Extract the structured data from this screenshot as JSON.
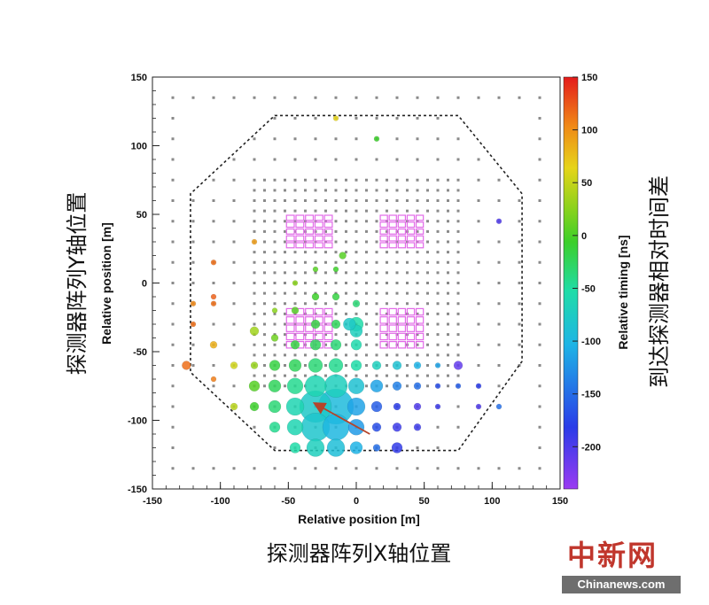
{
  "chart_data": {
    "type": "scatter",
    "xlabel": "Relative position [m]",
    "ylabel": "Relative position [m]",
    "xlabel_cn": "探测器阵列X轴位置",
    "ylabel_cn": "探测器阵列Y轴位置",
    "xlim": [
      -150,
      150
    ],
    "ylim": [
      -150,
      150
    ],
    "x_ticks": [
      -150,
      -100,
      -50,
      0,
      50,
      100,
      150
    ],
    "y_ticks": [
      -150,
      -100,
      -50,
      0,
      50,
      100,
      150
    ],
    "x_tick_labels": [
      "-150",
      "-100",
      "-50",
      "0",
      "50",
      "100",
      "150"
    ],
    "y_tick_labels": [
      "-150",
      "-100",
      "-50",
      "0",
      "50",
      "100",
      "150"
    ],
    "colorbar": {
      "label": "Relative timing [ns]",
      "label_cn": "到达探测器相对时间差",
      "range": [
        -240,
        150
      ],
      "ticks": [
        150,
        100,
        50,
        0,
        -50,
        -100,
        -150,
        -200
      ],
      "tick_labels": [
        "150",
        "100",
        "50",
        "0",
        "-50",
        "-100",
        "-150",
        "-200"
      ]
    },
    "array_boundary_octagon": [
      [
        -60,
        122
      ],
      [
        75,
        122
      ],
      [
        122,
        65
      ],
      [
        122,
        -57
      ],
      [
        75,
        -122
      ],
      [
        -60,
        -122
      ],
      [
        -122,
        -65
      ],
      [
        -122,
        65
      ]
    ],
    "muon_detector_blocks": [
      {
        "x": [
          -52,
          -17
        ],
        "y": [
          25,
          50
        ]
      },
      {
        "x": [
          17,
          50
        ],
        "y": [
          25,
          50
        ]
      },
      {
        "x": [
          -52,
          -17
        ],
        "y": [
          -48,
          -18
        ]
      },
      {
        "x": [
          17,
          50
        ],
        "y": [
          -48,
          -18
        ]
      }
    ],
    "shower_direction_arrow": {
      "from": [
        10,
        -110
      ],
      "to": [
        -30,
        -88
      ]
    },
    "hit_detectors": [
      {
        "x": -125,
        "y": -60,
        "t": 120,
        "size": 5
      },
      {
        "x": -120,
        "y": -15,
        "t": 110,
        "size": 3
      },
      {
        "x": -120,
        "y": -30,
        "t": 120,
        "size": 3
      },
      {
        "x": -105,
        "y": -45,
        "t": 90,
        "size": 4
      },
      {
        "x": -105,
        "y": -15,
        "t": 120,
        "size": 3
      },
      {
        "x": -105,
        "y": -70,
        "t": 115,
        "size": 3
      },
      {
        "x": -105,
        "y": -10,
        "t": 125,
        "size": 3
      },
      {
        "x": -105,
        "y": 15,
        "t": 120,
        "size": 3
      },
      {
        "x": -90,
        "y": -90,
        "t": 50,
        "size": 4
      },
      {
        "x": -90,
        "y": -60,
        "t": 60,
        "size": 4
      },
      {
        "x": -75,
        "y": -35,
        "t": 40,
        "size": 5
      },
      {
        "x": -75,
        "y": -60,
        "t": 35,
        "size": 4
      },
      {
        "x": -75,
        "y": -75,
        "t": 10,
        "size": 6
      },
      {
        "x": -75,
        "y": -90,
        "t": 0,
        "size": 5
      },
      {
        "x": -75,
        "y": 30,
        "t": 100,
        "size": 3
      },
      {
        "x": -60,
        "y": -60,
        "t": -10,
        "size": 6
      },
      {
        "x": -60,
        "y": -75,
        "t": -20,
        "size": 7
      },
      {
        "x": -60,
        "y": -90,
        "t": -30,
        "size": 7
      },
      {
        "x": -60,
        "y": -105,
        "t": -40,
        "size": 6
      },
      {
        "x": -60,
        "y": -40,
        "t": 20,
        "size": 4
      },
      {
        "x": -60,
        "y": -20,
        "t": 30,
        "size": 3
      },
      {
        "x": -45,
        "y": -60,
        "t": -20,
        "size": 7
      },
      {
        "x": -45,
        "y": -75,
        "t": -40,
        "size": 9
      },
      {
        "x": -45,
        "y": -90,
        "t": -60,
        "size": 10
      },
      {
        "x": -45,
        "y": -105,
        "t": -60,
        "size": 9
      },
      {
        "x": -45,
        "y": -120,
        "t": -50,
        "size": 6
      },
      {
        "x": -45,
        "y": -45,
        "t": -10,
        "size": 5
      },
      {
        "x": -45,
        "y": -20,
        "t": 10,
        "size": 4
      },
      {
        "x": -45,
        "y": 0,
        "t": 30,
        "size": 3
      },
      {
        "x": -30,
        "y": -60,
        "t": -30,
        "size": 8
      },
      {
        "x": -30,
        "y": -75,
        "t": -60,
        "size": 12
      },
      {
        "x": -30,
        "y": -90,
        "t": -80,
        "size": 18
      },
      {
        "x": -30,
        "y": -105,
        "t": -85,
        "size": 16
      },
      {
        "x": -30,
        "y": -120,
        "t": -70,
        "size": 10
      },
      {
        "x": -30,
        "y": -45,
        "t": -20,
        "size": 6
      },
      {
        "x": -30,
        "y": -30,
        "t": -10,
        "size": 5
      },
      {
        "x": -30,
        "y": -10,
        "t": 0,
        "size": 4
      },
      {
        "x": -30,
        "y": 10,
        "t": 10,
        "size": 3
      },
      {
        "x": -15,
        "y": -60,
        "t": -40,
        "size": 8
      },
      {
        "x": -15,
        "y": -75,
        "t": -70,
        "size": 13
      },
      {
        "x": -15,
        "y": -90,
        "t": -100,
        "size": 20
      },
      {
        "x": -15,
        "y": -105,
        "t": -105,
        "size": 15
      },
      {
        "x": -15,
        "y": -120,
        "t": -95,
        "size": 10
      },
      {
        "x": -15,
        "y": -45,
        "t": -30,
        "size": 6
      },
      {
        "x": -15,
        "y": -30,
        "t": -20,
        "size": 5
      },
      {
        "x": -15,
        "y": -10,
        "t": -10,
        "size": 4
      },
      {
        "x": -15,
        "y": 10,
        "t": 0,
        "size": 3
      },
      {
        "x": -10,
        "y": 20,
        "t": 10,
        "size": 4
      },
      {
        "x": 0,
        "y": -60,
        "t": -50,
        "size": 6
      },
      {
        "x": 0,
        "y": -75,
        "t": -90,
        "size": 9
      },
      {
        "x": 0,
        "y": -90,
        "t": -120,
        "size": 10
      },
      {
        "x": 0,
        "y": -105,
        "t": -125,
        "size": 9
      },
      {
        "x": 0,
        "y": -120,
        "t": -110,
        "size": 7
      },
      {
        "x": 0,
        "y": -30,
        "t": -50,
        "size": 8
      },
      {
        "x": 0,
        "y": -45,
        "t": -55,
        "size": 6
      },
      {
        "x": 0,
        "y": -15,
        "t": -30,
        "size": 4
      },
      {
        "x": 15,
        "y": -60,
        "t": -70,
        "size": 5
      },
      {
        "x": 15,
        "y": -75,
        "t": -120,
        "size": 7
      },
      {
        "x": 15,
        "y": -90,
        "t": -160,
        "size": 6
      },
      {
        "x": 15,
        "y": -105,
        "t": -170,
        "size": 5
      },
      {
        "x": 15,
        "y": -120,
        "t": -150,
        "size": 4
      },
      {
        "x": 30,
        "y": -60,
        "t": -90,
        "size": 5
      },
      {
        "x": 30,
        "y": -75,
        "t": -140,
        "size": 5
      },
      {
        "x": 30,
        "y": -90,
        "t": -180,
        "size": 4
      },
      {
        "x": 30,
        "y": -105,
        "t": -190,
        "size": 5
      },
      {
        "x": 30,
        "y": -120,
        "t": -185,
        "size": 6
      },
      {
        "x": 45,
        "y": -60,
        "t": -110,
        "size": 4
      },
      {
        "x": 45,
        "y": -75,
        "t": -150,
        "size": 4
      },
      {
        "x": 45,
        "y": -90,
        "t": -200,
        "size": 4
      },
      {
        "x": 45,
        "y": -105,
        "t": -190,
        "size": 4
      },
      {
        "x": 60,
        "y": -60,
        "t": -120,
        "size": 3
      },
      {
        "x": 60,
        "y": -75,
        "t": -170,
        "size": 3
      },
      {
        "x": 60,
        "y": -90,
        "t": -190,
        "size": 3
      },
      {
        "x": 75,
        "y": -60,
        "t": -210,
        "size": 5
      },
      {
        "x": 75,
        "y": -75,
        "t": -160,
        "size": 3
      },
      {
        "x": 90,
        "y": -75,
        "t": -180,
        "size": 3
      },
      {
        "x": 90,
        "y": -90,
        "t": -200,
        "size": 3
      },
      {
        "x": 105,
        "y": -90,
        "t": -150,
        "size": 3
      },
      {
        "x": 105,
        "y": 45,
        "t": -200,
        "size": 3
      },
      {
        "x": -15,
        "y": 120,
        "t": 70,
        "size": 3
      },
      {
        "x": 15,
        "y": 105,
        "t": 0,
        "size": 3
      },
      {
        "x": 0,
        "y": -35,
        "t": -70,
        "size": 7
      },
      {
        "x": -5,
        "y": -30,
        "t": -80,
        "size": 7
      }
    ]
  }
}
